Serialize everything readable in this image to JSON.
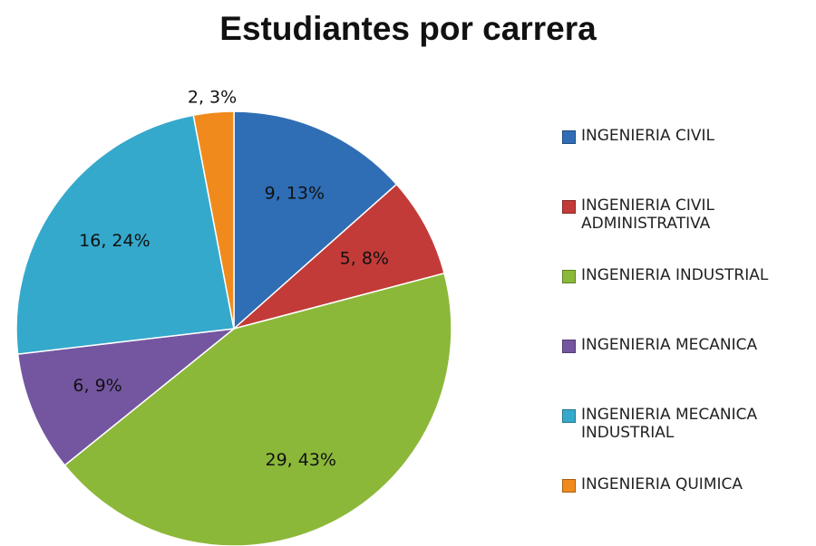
{
  "chart_data": {
    "type": "pie",
    "title": "Estudiantes por carrera",
    "categories": [
      "INGENIERIA CIVIL",
      "INGENIERIA CIVIL ADMINISTRATIVA",
      "INGENIERIA INDUSTRIAL",
      "INGENIERIA MECANICA",
      "INGENIERIA MECANICA INDUSTRIAL",
      "INGENIERIA QUIMICA"
    ],
    "values": [
      9,
      5,
      29,
      6,
      16,
      2
    ],
    "value_labels": [
      "9, 13%",
      "5, 8%",
      "29, 43%",
      "6, 9%",
      "16, 24%",
      "2, 3%"
    ],
    "colors": [
      "#2f6eb5",
      "#c23b38",
      "#8cb83a",
      "#7456a0",
      "#35a9cc",
      "#f08a1d"
    ],
    "legend": "right"
  }
}
